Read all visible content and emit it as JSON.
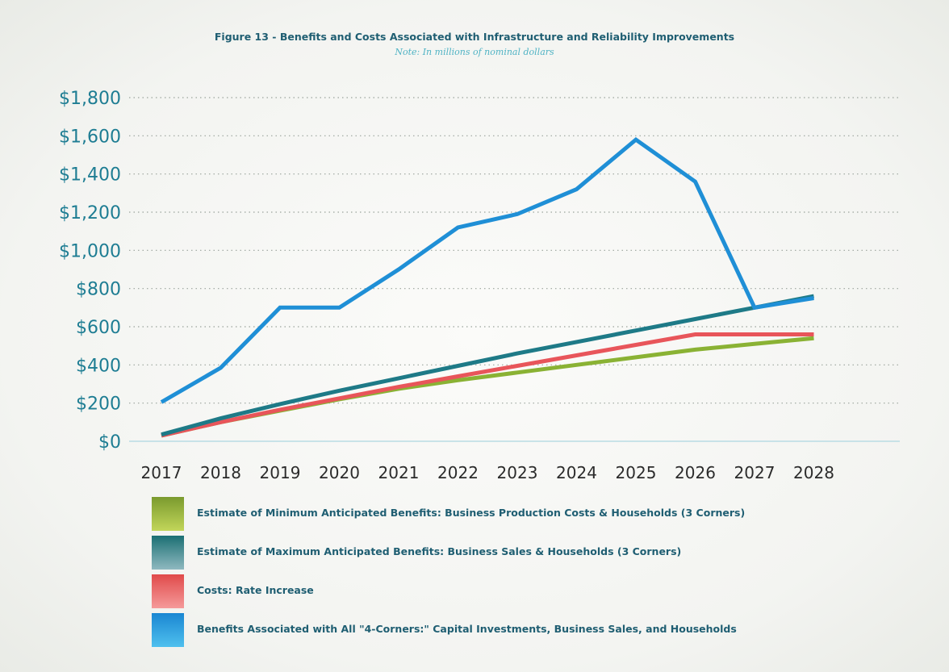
{
  "chart_data": {
    "type": "line",
    "title": "Figure 13 - Benefits and Costs Associated with Infrastructure and Reliability Improvements",
    "subtitle": "Note: In millions of nominal dollars",
    "xlabel": "",
    "ylabel": "",
    "ylim": [
      0,
      1800
    ],
    "yticks": [
      "$0",
      "$200",
      "$400",
      "$600",
      "$800",
      "$1,000",
      "$1,200",
      "$1,400",
      "$1,600",
      "$1,800"
    ],
    "ytick_values": [
      0,
      200,
      400,
      600,
      800,
      1000,
      1200,
      1400,
      1600,
      1800
    ],
    "categories": [
      "2017",
      "2018",
      "2019",
      "2020",
      "2021",
      "2022",
      "2023",
      "2024",
      "2025",
      "2026",
      "2027",
      "2028"
    ],
    "grid": "horizontal dotted",
    "legend_position": "bottom",
    "series": [
      {
        "name": "Estimate of Minimum Anticipated Benefits: Business Production Costs & Households (3 Corners)",
        "color": "#8ab234",
        "values": [
          30,
          100,
          160,
          220,
          275,
          320,
          360,
          400,
          440,
          480,
          510,
          540
        ]
      },
      {
        "name": "Estimate of Maximum Anticipated Benefits: Business Sales & Households (3 Corners)",
        "color": "#1e7a87",
        "values": [
          35,
          120,
          195,
          265,
          330,
          395,
          460,
          520,
          580,
          640,
          700,
          760
        ]
      },
      {
        "name": "Costs: Rate Increase",
        "color": "#e8555a",
        "values": [
          30,
          100,
          165,
          225,
          285,
          340,
          395,
          450,
          505,
          560,
          560,
          560
        ]
      },
      {
        "name": "Benefits Associated with All \"4-Corners:\" Capital Investments, Business Sales, and Households",
        "color": "#1f8fd6",
        "values": [
          205,
          385,
          700,
          700,
          900,
          1120,
          1190,
          1320,
          1580,
          1360,
          700,
          750
        ]
      }
    ],
    "legend_swatch_gradients": [
      [
        "#7a9a2e",
        "#c2d65a"
      ],
      [
        "#1b6f73",
        "#8fb9c0"
      ],
      [
        "#e04a4a",
        "#f59a9a"
      ],
      [
        "#1a86d2",
        "#4fc0ee"
      ]
    ]
  }
}
